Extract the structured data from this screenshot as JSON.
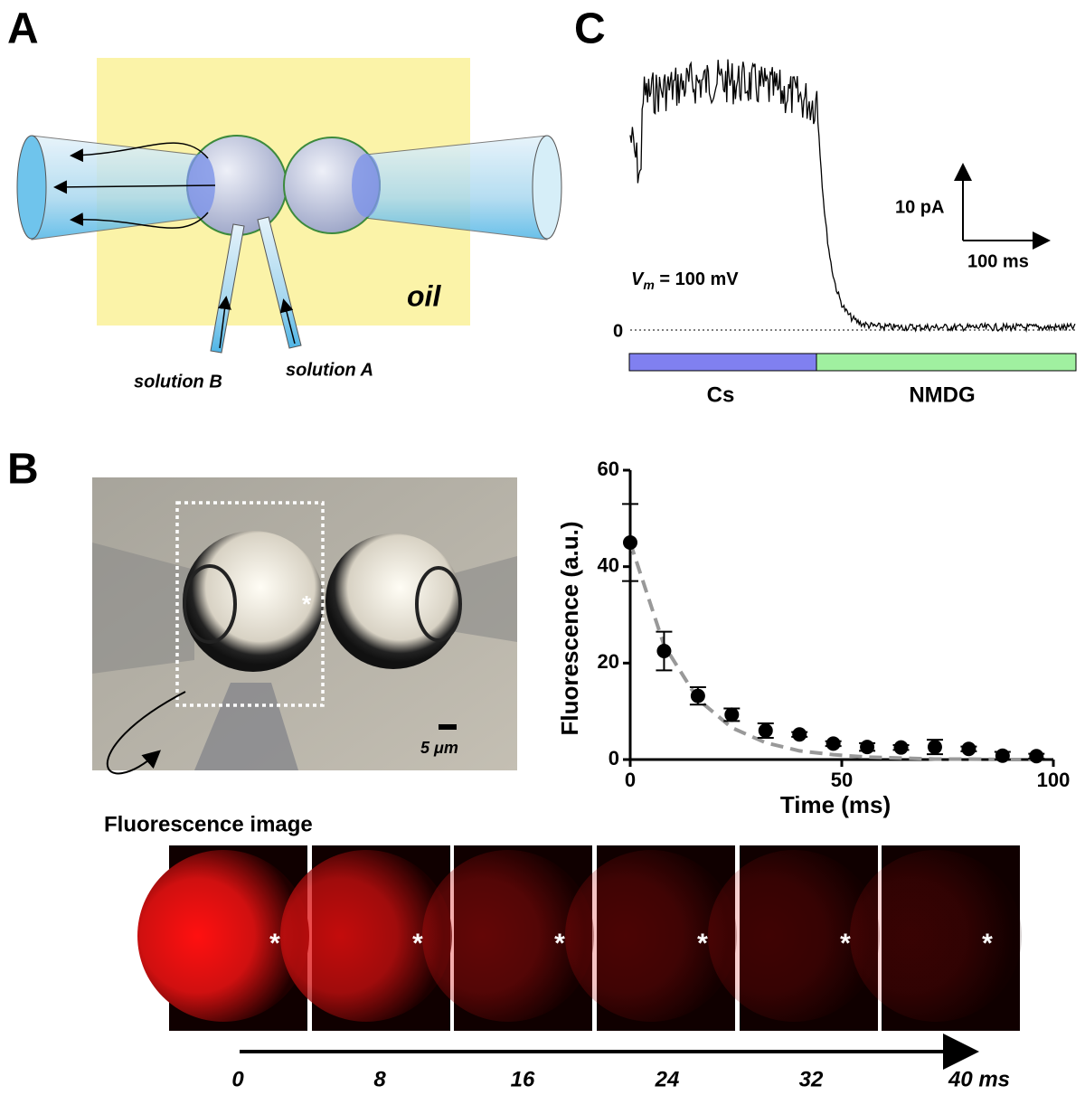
{
  "panel_labels": {
    "a": "A",
    "b": "B",
    "c": "C"
  },
  "panel_a": {
    "medium": "oil",
    "pipette_b": "solution B",
    "pipette_a": "solution A"
  },
  "panel_c": {
    "scale_current": "10 pA",
    "scale_time": "100 ms",
    "vm_symbol": "V",
    "vm_subscript": "m",
    "vm_value": " = 100 mV",
    "baseline": "0",
    "solution_1": "Cs",
    "solution_2": "NMDG"
  },
  "panel_b": {
    "scale_bar": "5 μm",
    "image_title": "Fluorescence image",
    "frame_times": [
      "0",
      "8",
      "16",
      "24",
      "32",
      "40 ms"
    ]
  },
  "chart_data": {
    "type": "scatter",
    "xlabel": "Time (ms)",
    "ylabel": "Fluorescence (a.u.)",
    "xlim": [
      0,
      100
    ],
    "xticks": [
      0,
      50,
      100
    ],
    "ylim": [
      0,
      60
    ],
    "yticks": [
      0,
      20,
      40,
      60
    ],
    "x": [
      0,
      8,
      16,
      24,
      32,
      40,
      48,
      56,
      64,
      72,
      80,
      88,
      96
    ],
    "series": [
      {
        "color": "#000000",
        "values": [
          45,
          22.5,
          13.2,
          9.3,
          6,
          5.2,
          3.3,
          2.6,
          2.5,
          2.6,
          2.2,
          0.8,
          0.7
        ],
        "errors": [
          8,
          4,
          1.8,
          1.3,
          1.5,
          0.5,
          0.5,
          0.8,
          0.5,
          1.5,
          0.5,
          0.8,
          0.5
        ]
      },
      {
        "color": "#999999",
        "dashed": true,
        "values": [
          45,
          23.7,
          12.5,
          6.6,
          3.5,
          1.8,
          1,
          0.5,
          0.3,
          0.1,
          0.1,
          0,
          0
        ]
      }
    ]
  }
}
